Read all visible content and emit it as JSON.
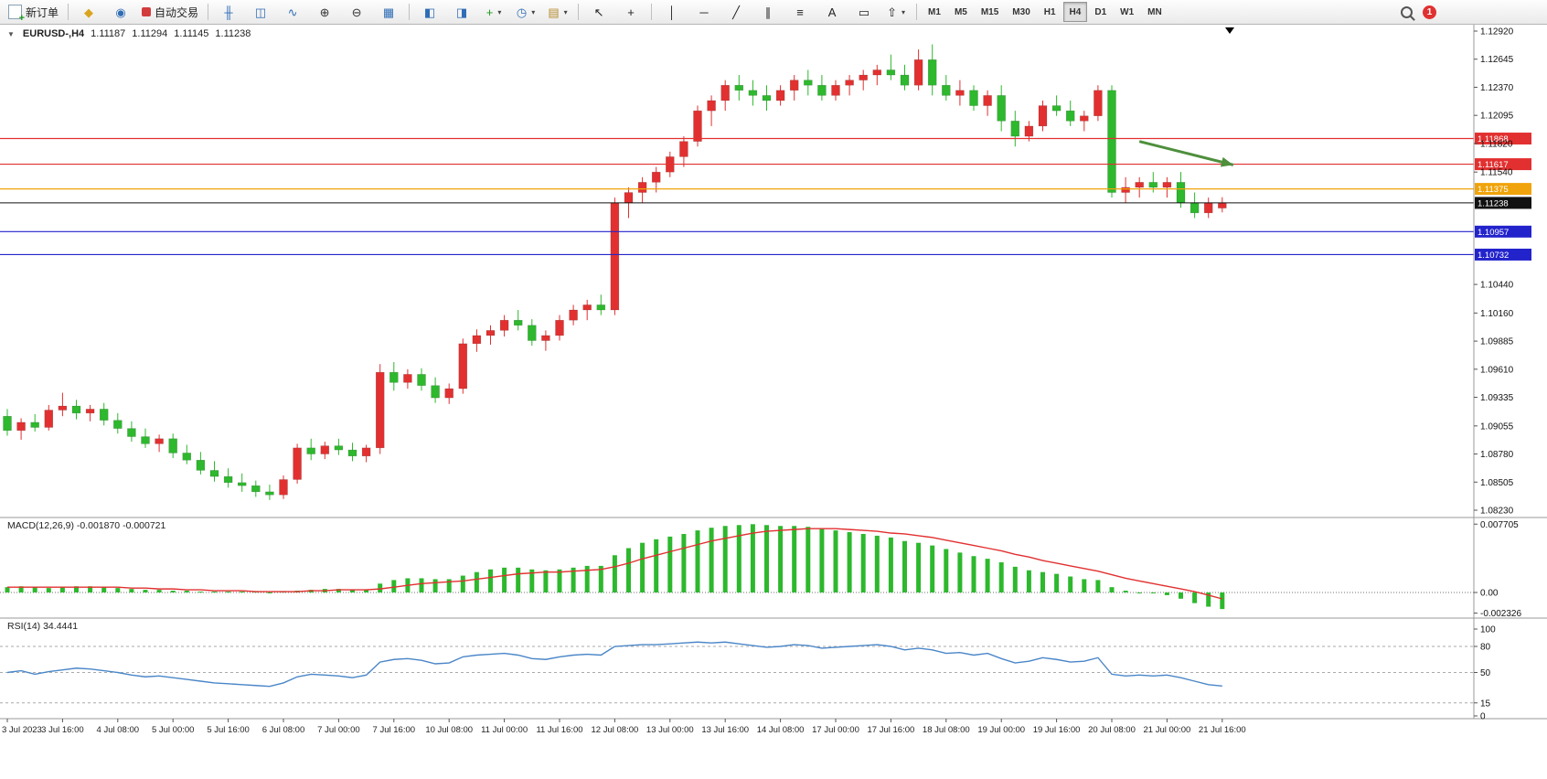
{
  "icons": {
    "collapse": "▼",
    "caret": "▾"
  },
  "toolbar": {
    "new_order_label": "新订单",
    "auto_trading_label": "自动交易",
    "notification_count": "1",
    "active_timeframe": "H4",
    "timeframes": [
      "M1",
      "M5",
      "M15",
      "M30",
      "H1",
      "H4",
      "D1",
      "W1",
      "MN"
    ],
    "icon_groups": [
      [
        {
          "name": "navigator-button",
          "icon": "compass-icon",
          "glyph": "◆",
          "color": "#d9a520"
        },
        {
          "name": "market-watch-button",
          "icon": "market-watch-icon",
          "glyph": "◉",
          "color": "#2f6db5"
        }
      ],
      [
        {
          "name": "bar-chart-button",
          "icon": "bar-chart-icon",
          "glyph": "╫",
          "color": "#2f6db5"
        },
        {
          "name": "candlestick-chart-button",
          "icon": "candlestick-icon",
          "glyph": "◫",
          "color": "#2f6db5"
        },
        {
          "name": "line-chart-button",
          "icon": "line-chart-icon",
          "glyph": "∿",
          "color": "#2f6db5"
        },
        {
          "name": "zoom-in-button",
          "icon": "zoom-in-icon",
          "glyph": "⊕",
          "color": "#333333"
        },
        {
          "name": "zoom-out-button",
          "icon": "zoom-out-icon",
          "glyph": "⊖",
          "color": "#333333"
        },
        {
          "name": "tile-windows-button",
          "icon": "tile-windows-icon",
          "glyph": "▦",
          "color": "#2f6db5"
        }
      ],
      [
        {
          "name": "arrange-charts-button",
          "icon": "arrange-charts-icon",
          "glyph": "◧",
          "color": "#2f6db5"
        },
        {
          "name": "cascade-charts-button",
          "icon": "cascade-charts-icon",
          "glyph": "◨",
          "color": "#2f6db5"
        },
        {
          "name": "add-indicator-button",
          "icon": "plus-icon",
          "glyph": "+",
          "color": "#1d9b1d",
          "dropdown": true
        },
        {
          "name": "period-select-button",
          "icon": "clock-icon",
          "glyph": "◷",
          "color": "#2f6db5",
          "dropdown": true
        },
        {
          "name": "template-button",
          "icon": "template-icon",
          "glyph": "▤",
          "color": "#b58a2a",
          "dropdown": true
        }
      ],
      [
        {
          "name": "cursor-button",
          "icon": "cursor-icon",
          "glyph": "↖",
          "color": "#222222"
        },
        {
          "name": "crosshair-button",
          "icon": "crosshair-icon",
          "glyph": "+",
          "color": "#222222"
        }
      ],
      [
        {
          "name": "vertical-line-button",
          "icon": "vertical-line-icon",
          "glyph": "│",
          "color": "#222222"
        },
        {
          "name": "horizontal-line-button",
          "icon": "horizontal-line-icon",
          "glyph": "─",
          "color": "#222222"
        },
        {
          "name": "trendline-button",
          "icon": "trendline-icon",
          "glyph": "╱",
          "color": "#222222"
        },
        {
          "name": "channel-button",
          "icon": "channel-icon",
          "glyph": "∥",
          "color": "#222222"
        },
        {
          "name": "fibonacci-button",
          "icon": "fibonacci-icon",
          "glyph": "≡",
          "color": "#222222"
        },
        {
          "name": "text-button",
          "icon": "text-icon",
          "glyph": "A",
          "color": "#222222"
        },
        {
          "name": "text-label-button",
          "icon": "text-label-icon",
          "glyph": "▭",
          "color": "#222222"
        },
        {
          "name": "arrow-tools-button",
          "icon": "arrow-shapes-icon",
          "glyph": "⇧",
          "color": "#222222",
          "dropdown": true
        }
      ]
    ]
  },
  "chart_header": {
    "symbol": "EURUSD-,H4",
    "open": "1.11187",
    "high": "1.11294",
    "low": "1.11145",
    "close": "1.11238"
  },
  "chart_data": [
    {
      "type": "candlestick",
      "symbol": "EURUSD-",
      "timeframe": "H4",
      "up_color": "#e23030",
      "down_color": "#2db82d",
      "y_min": 1.0823,
      "y_max": 1.1292,
      "y_ticks": [
        1.1292,
        1.12645,
        1.1237,
        1.12095,
        1.1182,
        1.1154,
        1.1044,
        1.1016,
        1.09885,
        1.0961,
        1.09335,
        1.09055,
        1.0878,
        1.08505,
        1.0823
      ],
      "x_label_step": 4,
      "x_labels": [
        "3 Jul 2023",
        "3 Jul 16:00",
        "4 Jul 08:00",
        "5 Jul 00:00",
        "5 Jul 16:00",
        "6 Jul 08:00",
        "7 Jul 00:00",
        "7 Jul 16:00",
        "10 Jul 08:00",
        "11 Jul 00:00",
        "11 Jul 16:00",
        "12 Jul 08:00",
        "13 Jul 00:00",
        "13 Jul 16:00",
        "14 Jul 08:00",
        "17 Jul 00:00",
        "17 Jul 16:00",
        "18 Jul 08:00",
        "19 Jul 00:00",
        "19 Jul 16:00",
        "20 Jul 08:00",
        "21 Jul 00:00",
        "21 Jul 16:00"
      ],
      "current_bar": {
        "open": 1.11187,
        "high": 1.11294,
        "low": 1.11145,
        "close": 1.11238
      },
      "hlines": [
        {
          "price": 1.11868,
          "label": "1.11868",
          "color": "#e23030"
        },
        {
          "price": 1.11617,
          "label": "1.11617",
          "color": "#e23030"
        },
        {
          "price": 1.11375,
          "label": "1.11375",
          "color": "#f0a30a"
        },
        {
          "price": 1.11238,
          "label": "1.11238",
          "color": "#111111",
          "role": "current-price"
        },
        {
          "price": 1.10957,
          "label": "1.10957",
          "color": "#2323cc"
        },
        {
          "price": 1.10732,
          "label": "1.10732",
          "color": "#2323cc"
        }
      ],
      "arrow": {
        "from_bar": 82,
        "from_price": 1.1184,
        "to_bar": 88.8,
        "to_price": 1.1161,
        "color": "#4e8f3c"
      },
      "candles": [
        [
          1.0915,
          1.0922,
          1.0896,
          1.0901
        ],
        [
          1.0901,
          1.0913,
          1.0892,
          1.0909
        ],
        [
          1.0909,
          1.0917,
          1.09,
          1.0904
        ],
        [
          1.0904,
          1.0926,
          1.0901,
          1.0921
        ],
        [
          1.0921,
          1.0938,
          1.0915,
          1.0925
        ],
        [
          1.0925,
          1.0931,
          1.0912,
          1.0918
        ],
        [
          1.0918,
          1.0926,
          1.091,
          1.0922
        ],
        [
          1.0922,
          1.0928,
          1.0906,
          1.0911
        ],
        [
          1.0911,
          1.0918,
          1.0898,
          1.0903
        ],
        [
          1.0903,
          1.091,
          1.089,
          1.0895
        ],
        [
          1.0895,
          1.0903,
          1.0884,
          1.0888
        ],
        [
          1.0888,
          1.0897,
          1.088,
          1.0893
        ],
        [
          1.0893,
          1.0898,
          1.0874,
          1.0879
        ],
        [
          1.0879,
          1.0887,
          1.0868,
          1.0872
        ],
        [
          1.0872,
          1.088,
          1.0858,
          1.0862
        ],
        [
          1.0862,
          1.0871,
          1.0851,
          1.0856
        ],
        [
          1.0856,
          1.0864,
          1.0845,
          1.085
        ],
        [
          1.085,
          1.0859,
          1.0841,
          1.0847
        ],
        [
          1.0847,
          1.0852,
          1.0836,
          1.0841
        ],
        [
          1.0841,
          1.0848,
          1.0833,
          1.0838
        ],
        [
          1.0838,
          1.0857,
          1.0834,
          1.0853
        ],
        [
          1.0853,
          1.0888,
          1.0849,
          1.0884
        ],
        [
          1.0884,
          1.0893,
          1.0872,
          1.0878
        ],
        [
          1.0878,
          1.089,
          1.0873,
          1.0886
        ],
        [
          1.0886,
          1.0893,
          1.0877,
          1.0882
        ],
        [
          1.0882,
          1.0889,
          1.0871,
          1.0876
        ],
        [
          1.0876,
          1.0887,
          1.087,
          1.0884
        ],
        [
          1.0884,
          1.0966,
          1.0878,
          1.0958
        ],
        [
          1.0958,
          1.0968,
          1.094,
          1.0948
        ],
        [
          1.0948,
          1.0961,
          1.0942,
          1.0956
        ],
        [
          1.0956,
          1.0962,
          1.094,
          1.0945
        ],
        [
          1.0945,
          1.0953,
          1.0928,
          1.0933
        ],
        [
          1.0933,
          1.0947,
          1.0927,
          1.0942
        ],
        [
          1.0942,
          1.0991,
          1.0937,
          1.0986
        ],
        [
          1.0986,
          1.1,
          1.0978,
          1.0994
        ],
        [
          1.0994,
          1.1004,
          1.0985,
          1.0999
        ],
        [
          1.0999,
          1.1014,
          1.0993,
          1.1009
        ],
        [
          1.1009,
          1.1019,
          1.0999,
          1.1004
        ],
        [
          1.1004,
          1.101,
          1.0984,
          1.0989
        ],
        [
          1.0989,
          1.0999,
          1.0979,
          1.0994
        ],
        [
          1.0994,
          1.1014,
          1.0989,
          1.1009
        ],
        [
          1.1009,
          1.1024,
          1.1004,
          1.1019
        ],
        [
          1.1019,
          1.1029,
          1.1009,
          1.1024
        ],
        [
          1.1024,
          1.1034,
          1.1014,
          1.1019
        ],
        [
          1.1019,
          1.1129,
          1.1014,
          1.1124
        ],
        [
          1.1124,
          1.1139,
          1.1109,
          1.1134
        ],
        [
          1.1134,
          1.1149,
          1.1124,
          1.1144
        ],
        [
          1.1144,
          1.1159,
          1.1134,
          1.1154
        ],
        [
          1.1154,
          1.1174,
          1.1149,
          1.1169
        ],
        [
          1.1169,
          1.1189,
          1.1159,
          1.1184
        ],
        [
          1.1184,
          1.1219,
          1.1179,
          1.1214
        ],
        [
          1.1214,
          1.1229,
          1.1199,
          1.1224
        ],
        [
          1.1224,
          1.1244,
          1.1214,
          1.1239
        ],
        [
          1.1239,
          1.1249,
          1.1224,
          1.1234
        ],
        [
          1.1234,
          1.1244,
          1.1219,
          1.1229
        ],
        [
          1.1229,
          1.1239,
          1.1214,
          1.1224
        ],
        [
          1.1224,
          1.1239,
          1.1219,
          1.1234
        ],
        [
          1.1234,
          1.1249,
          1.1224,
          1.1244
        ],
        [
          1.1244,
          1.1254,
          1.1229,
          1.1239
        ],
        [
          1.1239,
          1.1249,
          1.1224,
          1.1229
        ],
        [
          1.1229,
          1.1244,
          1.1224,
          1.1239
        ],
        [
          1.1239,
          1.1249,
          1.1229,
          1.1244
        ],
        [
          1.1244,
          1.1254,
          1.1234,
          1.1249
        ],
        [
          1.1249,
          1.1259,
          1.1239,
          1.1254
        ],
        [
          1.1254,
          1.1269,
          1.1244,
          1.1249
        ],
        [
          1.1249,
          1.1259,
          1.1234,
          1.1239
        ],
        [
          1.1239,
          1.1274,
          1.1234,
          1.1264
        ],
        [
          1.1264,
          1.1279,
          1.1229,
          1.1239
        ],
        [
          1.1239,
          1.1249,
          1.1224,
          1.1229
        ],
        [
          1.1229,
          1.1244,
          1.1219,
          1.1234
        ],
        [
          1.1234,
          1.1239,
          1.1214,
          1.1219
        ],
        [
          1.1219,
          1.1234,
          1.1209,
          1.1229
        ],
        [
          1.1229,
          1.1239,
          1.1194,
          1.1204
        ],
        [
          1.1204,
          1.1214,
          1.1179,
          1.1189
        ],
        [
          1.1189,
          1.1204,
          1.1184,
          1.1199
        ],
        [
          1.1199,
          1.1224,
          1.1194,
          1.1219
        ],
        [
          1.1219,
          1.1229,
          1.1209,
          1.1214
        ],
        [
          1.1214,
          1.1224,
          1.1199,
          1.1204
        ],
        [
          1.1204,
          1.1214,
          1.1194,
          1.1209
        ],
        [
          1.1209,
          1.1239,
          1.1204,
          1.1234
        ],
        [
          1.1234,
          1.1239,
          1.1129,
          1.1134
        ],
        [
          1.1134,
          1.1149,
          1.1124,
          1.1139
        ],
        [
          1.1139,
          1.1149,
          1.1129,
          1.1144
        ],
        [
          1.1144,
          1.1154,
          1.1134,
          1.1139
        ],
        [
          1.1139,
          1.1149,
          1.1129,
          1.1144
        ],
        [
          1.1144,
          1.1154,
          1.1119,
          1.1124
        ],
        [
          1.1124,
          1.1134,
          1.1109,
          1.1114
        ],
        [
          1.1114,
          1.1129,
          1.1109,
          1.1124
        ],
        [
          1.11187,
          1.11294,
          1.11145,
          1.11238
        ]
      ]
    },
    {
      "type": "bar",
      "name": "MACD",
      "label": "MACD(12,26,9) -0.001870 -0.000721",
      "current_value": -0.00187,
      "current_signal": -0.000721,
      "histogram_color": "#2db82d",
      "signal_color": "#e23030",
      "y_ticks": [
        0.007705,
        0,
        -0.002326
      ],
      "y_tick_labels": [
        "0.007705",
        "0.00",
        "-0.002326"
      ],
      "values": [
        0.0006,
        0.0007,
        0.0006,
        0.0005,
        0.0006,
        0.0007,
        0.0007,
        0.0006,
        0.0005,
        0.0004,
        0.0003,
        0.0003,
        0.0002,
        0.0002,
        0.0001,
        0.0001,
        0.0001,
        0.0001,
        0.0001,
        0,
        0.0001,
        0.0002,
        0.0003,
        0.0004,
        0.0004,
        0.0003,
        0.0003,
        0.001,
        0.0014,
        0.0016,
        0.0016,
        0.0015,
        0.0015,
        0.0019,
        0.0023,
        0.0026,
        0.0028,
        0.0028,
        0.0026,
        0.0025,
        0.0026,
        0.0028,
        0.003,
        0.003,
        0.0042,
        0.005,
        0.0056,
        0.006,
        0.0063,
        0.0066,
        0.007,
        0.0073,
        0.0075,
        0.0076,
        0.0077,
        0.0076,
        0.0075,
        0.0075,
        0.0074,
        0.0072,
        0.007,
        0.0068,
        0.0066,
        0.0064,
        0.0062,
        0.0058,
        0.0056,
        0.0053,
        0.0049,
        0.0045,
        0.0041,
        0.0038,
        0.0034,
        0.0029,
        0.0025,
        0.0023,
        0.0021,
        0.0018,
        0.0015,
        0.0014,
        0.0006,
        0.0002,
        0,
        -0.0001,
        -0.0003,
        -0.0007,
        -0.0012,
        -0.0016,
        -0.00187
      ],
      "signal": [
        0.0006,
        0.0006,
        0.0006,
        0.0006,
        0.0006,
        0.0006,
        0.0006,
        0.0006,
        0.0006,
        0.0005,
        0.0005,
        0.0004,
        0.0004,
        0.0003,
        0.0003,
        0.0002,
        0.0002,
        0.0002,
        0.0001,
        0.0001,
        0.0001,
        0.0001,
        0.0002,
        0.0002,
        0.0003,
        0.0003,
        0.0003,
        0.0004,
        0.0006,
        0.0008,
        0.001,
        0.0011,
        0.0012,
        0.0013,
        0.0015,
        0.0017,
        0.0019,
        0.0021,
        0.0022,
        0.0023,
        0.0023,
        0.0024,
        0.0025,
        0.0026,
        0.0029,
        0.0033,
        0.0038,
        0.0042,
        0.0046,
        0.005,
        0.0054,
        0.0058,
        0.0061,
        0.0064,
        0.0067,
        0.0069,
        0.007,
        0.0071,
        0.0072,
        0.0072,
        0.0072,
        0.0071,
        0.007,
        0.0069,
        0.0067,
        0.0066,
        0.0064,
        0.0062,
        0.0059,
        0.0056,
        0.0053,
        0.005,
        0.0047,
        0.0043,
        0.004,
        0.0036,
        0.0033,
        0.003,
        0.0027,
        0.0024,
        0.002,
        0.0016,
        0.0013,
        0.001,
        0.0007,
        0.0004,
        0.0001,
        -0.0003,
        -0.000721
      ]
    },
    {
      "type": "line",
      "name": "RSI",
      "label": "RSI(14) 34.4441",
      "period": 14,
      "current_value": 34.4441,
      "line_color": "#4a86c8",
      "range": [
        0,
        100
      ],
      "levels": [
        80,
        50,
        15
      ],
      "y_ticks": [
        100,
        80,
        50,
        15,
        0
      ],
      "values": [
        50,
        52,
        48,
        51,
        53,
        55,
        54,
        52,
        50,
        47,
        45,
        46,
        44,
        42,
        40,
        38,
        37,
        36,
        35,
        34,
        38,
        45,
        48,
        47,
        46,
        44,
        47,
        62,
        65,
        66,
        64,
        60,
        61,
        68,
        70,
        71,
        72,
        70,
        66,
        65,
        68,
        70,
        71,
        70,
        80,
        81,
        82,
        82,
        83,
        84,
        85,
        84,
        85,
        83,
        81,
        79,
        80,
        82,
        81,
        78,
        79,
        80,
        81,
        82,
        80,
        76,
        78,
        76,
        72,
        73,
        70,
        72,
        66,
        61,
        63,
        67,
        65,
        62,
        63,
        67,
        48,
        46,
        47,
        46,
        47,
        44,
        40,
        36,
        34.4441
      ]
    }
  ]
}
